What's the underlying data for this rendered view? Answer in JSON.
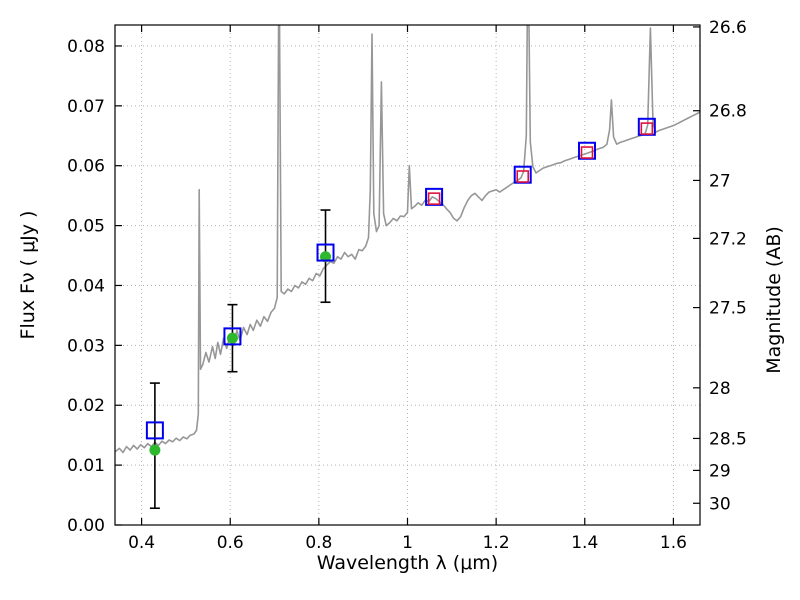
{
  "chart_data": {
    "type": "line",
    "title": "",
    "xlabel": "Wavelength  λ (μm)",
    "ylabel": "Flux  Fν  ( μJy )",
    "ylabel_right": "Magnitude (AB)",
    "xlim": [
      0.34,
      1.66
    ],
    "ylim": [
      0.0,
      0.0835
    ],
    "grid": true,
    "legend": "none",
    "x_ticks": [
      {
        "v": 0.4,
        "label": "0.4"
      },
      {
        "v": 0.6,
        "label": "0.6"
      },
      {
        "v": 0.8,
        "label": "0.8"
      },
      {
        "v": 1.0,
        "label": "1"
      },
      {
        "v": 1.2,
        "label": "1.2"
      },
      {
        "v": 1.4,
        "label": "1.4"
      },
      {
        "v": 1.6,
        "label": "1.6"
      }
    ],
    "y_ticks": [
      {
        "v": 0.0,
        "label": "0.00"
      },
      {
        "v": 0.01,
        "label": "0.01"
      },
      {
        "v": 0.02,
        "label": "0.02"
      },
      {
        "v": 0.03,
        "label": "0.03"
      },
      {
        "v": 0.04,
        "label": "0.04"
      },
      {
        "v": 0.05,
        "label": "0.05"
      },
      {
        "v": 0.06,
        "label": "0.06"
      },
      {
        "v": 0.07,
        "label": "0.07"
      },
      {
        "v": 0.08,
        "label": "0.08"
      }
    ],
    "mag_ticks": [
      {
        "mag": 26.6,
        "label": "26.6"
      },
      {
        "mag": 26.8,
        "label": "26.8"
      },
      {
        "mag": 27.0,
        "label": "27"
      },
      {
        "mag": 27.2,
        "label": "27.2"
      },
      {
        "mag": 27.5,
        "label": "27.5"
      },
      {
        "mag": 28.0,
        "label": "28"
      },
      {
        "mag": 28.5,
        "label": "28.5"
      },
      {
        "mag": 29.0,
        "label": "29"
      },
      {
        "mag": 30.0,
        "label": "30"
      }
    ],
    "mag_zeropoint_ujy": 23.9,
    "colors": {
      "spectrum": "#979797",
      "observed": "#2eb82e",
      "photometry_blue": "#0000ee",
      "photometry_red": "#dc143c",
      "errorbar": "#000000",
      "grid": "#b4b4b4",
      "frame": "#000000"
    },
    "series": [
      {
        "name": "model-spectrum",
        "type": "line",
        "color_key": "spectrum",
        "points": [
          [
            0.34,
            0.0122
          ],
          [
            0.35,
            0.0128
          ],
          [
            0.358,
            0.0121
          ],
          [
            0.366,
            0.0131
          ],
          [
            0.374,
            0.0125
          ],
          [
            0.382,
            0.0133
          ],
          [
            0.39,
            0.0127
          ],
          [
            0.398,
            0.0134
          ],
          [
            0.406,
            0.0129
          ],
          [
            0.414,
            0.0136
          ],
          [
            0.422,
            0.0131
          ],
          [
            0.43,
            0.0138
          ],
          [
            0.438,
            0.0133
          ],
          [
            0.446,
            0.014
          ],
          [
            0.454,
            0.0136
          ],
          [
            0.462,
            0.0142
          ],
          [
            0.47,
            0.0139
          ],
          [
            0.478,
            0.0145
          ],
          [
            0.486,
            0.0141
          ],
          [
            0.494,
            0.0147
          ],
          [
            0.502,
            0.0144
          ],
          [
            0.51,
            0.015
          ],
          [
            0.518,
            0.0152
          ],
          [
            0.524,
            0.0158
          ],
          [
            0.528,
            0.0185
          ],
          [
            0.53,
            0.056
          ],
          [
            0.533,
            0.026
          ],
          [
            0.538,
            0.0268
          ],
          [
            0.545,
            0.0288
          ],
          [
            0.552,
            0.0272
          ],
          [
            0.56,
            0.0298
          ],
          [
            0.566,
            0.0278
          ],
          [
            0.572,
            0.0305
          ],
          [
            0.578,
            0.0285
          ],
          [
            0.585,
            0.0312
          ],
          [
            0.592,
            0.0295
          ],
          [
            0.6,
            0.0318
          ],
          [
            0.608,
            0.03
          ],
          [
            0.615,
            0.0325
          ],
          [
            0.622,
            0.0308
          ],
          [
            0.63,
            0.033
          ],
          [
            0.638,
            0.0318
          ],
          [
            0.645,
            0.0335
          ],
          [
            0.652,
            0.0325
          ],
          [
            0.66,
            0.0342
          ],
          [
            0.668,
            0.0332
          ],
          [
            0.676,
            0.0348
          ],
          [
            0.684,
            0.034
          ],
          [
            0.692,
            0.0355
          ],
          [
            0.7,
            0.0362
          ],
          [
            0.706,
            0.038
          ],
          [
            0.71,
            0.098
          ],
          [
            0.715,
            0.039
          ],
          [
            0.722,
            0.0386
          ],
          [
            0.73,
            0.0394
          ],
          [
            0.738,
            0.039
          ],
          [
            0.746,
            0.04
          ],
          [
            0.754,
            0.0396
          ],
          [
            0.762,
            0.0406
          ],
          [
            0.77,
            0.0402
          ],
          [
            0.778,
            0.0412
          ],
          [
            0.786,
            0.0408
          ],
          [
            0.794,
            0.042
          ],
          [
            0.802,
            0.0416
          ],
          [
            0.81,
            0.0428
          ],
          [
            0.818,
            0.0434
          ],
          [
            0.826,
            0.044
          ],
          [
            0.834,
            0.0437
          ],
          [
            0.842,
            0.0448
          ],
          [
            0.85,
            0.0444
          ],
          [
            0.858,
            0.0455
          ],
          [
            0.866,
            0.0448
          ],
          [
            0.874,
            0.0452
          ],
          [
            0.882,
            0.0444
          ],
          [
            0.89,
            0.046
          ],
          [
            0.898,
            0.0458
          ],
          [
            0.906,
            0.0466
          ],
          [
            0.912,
            0.048
          ],
          [
            0.916,
            0.056
          ],
          [
            0.92,
            0.082
          ],
          [
            0.924,
            0.052
          ],
          [
            0.93,
            0.049
          ],
          [
            0.936,
            0.05
          ],
          [
            0.941,
            0.074
          ],
          [
            0.946,
            0.052
          ],
          [
            0.952,
            0.05
          ],
          [
            0.96,
            0.0505
          ],
          [
            0.968,
            0.0512
          ],
          [
            0.976,
            0.0508
          ],
          [
            0.984,
            0.0516
          ],
          [
            0.992,
            0.0515
          ],
          [
            1.0,
            0.0522
          ],
          [
            1.004,
            0.06
          ],
          [
            1.009,
            0.0528
          ],
          [
            1.016,
            0.0532
          ],
          [
            1.024,
            0.0538
          ],
          [
            1.032,
            0.0534
          ],
          [
            1.04,
            0.0542
          ],
          [
            1.048,
            0.054
          ],
          [
            1.056,
            0.0548
          ],
          [
            1.064,
            0.0545
          ],
          [
            1.072,
            0.054
          ],
          [
            1.08,
            0.0535
          ],
          [
            1.088,
            0.0528
          ],
          [
            1.096,
            0.0522
          ],
          [
            1.104,
            0.0512
          ],
          [
            1.112,
            0.0508
          ],
          [
            1.12,
            0.0515
          ],
          [
            1.128,
            0.053
          ],
          [
            1.136,
            0.0542
          ],
          [
            1.144,
            0.055
          ],
          [
            1.152,
            0.0554
          ],
          [
            1.16,
            0.0548
          ],
          [
            1.168,
            0.0542
          ],
          [
            1.176,
            0.055
          ],
          [
            1.184,
            0.0556
          ],
          [
            1.192,
            0.0558
          ],
          [
            1.2,
            0.056
          ],
          [
            1.208,
            0.0556
          ],
          [
            1.216,
            0.056
          ],
          [
            1.224,
            0.0564
          ],
          [
            1.232,
            0.0568
          ],
          [
            1.24,
            0.0572
          ],
          [
            1.248,
            0.0575
          ],
          [
            1.256,
            0.058
          ],
          [
            1.262,
            0.059
          ],
          [
            1.268,
            0.065
          ],
          [
            1.272,
            0.098
          ],
          [
            1.277,
            0.064
          ],
          [
            1.283,
            0.0598
          ],
          [
            1.29,
            0.0588
          ],
          [
            1.298,
            0.0592
          ],
          [
            1.306,
            0.0596
          ],
          [
            1.314,
            0.0598
          ],
          [
            1.322,
            0.06
          ],
          [
            1.33,
            0.0602
          ],
          [
            1.338,
            0.0604
          ],
          [
            1.346,
            0.0605
          ],
          [
            1.354,
            0.0608
          ],
          [
            1.362,
            0.061
          ],
          [
            1.37,
            0.0612
          ],
          [
            1.378,
            0.0614
          ],
          [
            1.386,
            0.0616
          ],
          [
            1.394,
            0.0618
          ],
          [
            1.402,
            0.062
          ],
          [
            1.41,
            0.0622
          ],
          [
            1.418,
            0.0624
          ],
          [
            1.426,
            0.0627
          ],
          [
            1.434,
            0.0629
          ],
          [
            1.442,
            0.0631
          ],
          [
            1.45,
            0.0636
          ],
          [
            1.456,
            0.066
          ],
          [
            1.46,
            0.071
          ],
          [
            1.465,
            0.0648
          ],
          [
            1.472,
            0.0636
          ],
          [
            1.48,
            0.0639
          ],
          [
            1.488,
            0.0641
          ],
          [
            1.496,
            0.0643
          ],
          [
            1.504,
            0.0645
          ],
          [
            1.512,
            0.0647
          ],
          [
            1.52,
            0.0649
          ],
          [
            1.528,
            0.0651
          ],
          [
            1.536,
            0.0653
          ],
          [
            1.542,
            0.0668
          ],
          [
            1.548,
            0.083
          ],
          [
            1.554,
            0.0672
          ],
          [
            1.56,
            0.0656
          ],
          [
            1.568,
            0.0659
          ],
          [
            1.576,
            0.0661
          ],
          [
            1.584,
            0.0663
          ],
          [
            1.592,
            0.0665
          ],
          [
            1.6,
            0.0667
          ],
          [
            1.608,
            0.067
          ],
          [
            1.616,
            0.0673
          ],
          [
            1.624,
            0.0676
          ],
          [
            1.632,
            0.0679
          ],
          [
            1.64,
            0.0682
          ],
          [
            1.648,
            0.0685
          ],
          [
            1.656,
            0.0688
          ],
          [
            1.66,
            0.069
          ]
        ]
      },
      {
        "name": "observed-photometry-circles",
        "type": "scatter",
        "marker": "circle-filled",
        "size": 11,
        "color_key": "observed",
        "points": [
          {
            "x": 0.43,
            "y": 0.0125,
            "err_lo": 0.0097,
            "err_hi": 0.0112
          },
          {
            "x": 0.605,
            "y": 0.0312,
            "err_lo": 0.0056,
            "err_hi": 0.0056
          },
          {
            "x": 0.815,
            "y": 0.0448,
            "err_lo": 0.0076,
            "err_hi": 0.0078
          }
        ]
      },
      {
        "name": "model-photometry-blue-squares",
        "type": "scatter",
        "marker": "square-open",
        "size": 16,
        "color_key": "photometry_blue",
        "points": [
          {
            "x": 0.43,
            "y": 0.0158
          },
          {
            "x": 0.605,
            "y": 0.0315
          },
          {
            "x": 0.815,
            "y": 0.0455
          },
          {
            "x": 1.06,
            "y": 0.0548
          },
          {
            "x": 1.26,
            "y": 0.0585
          },
          {
            "x": 1.405,
            "y": 0.0625
          },
          {
            "x": 1.54,
            "y": 0.0665
          }
        ]
      },
      {
        "name": "model-photometry-red-squares",
        "type": "scatter",
        "marker": "square-open",
        "size": 11,
        "color_key": "photometry_red",
        "points": [
          {
            "x": 1.06,
            "y": 0.0545
          },
          {
            "x": 1.26,
            "y": 0.0582
          },
          {
            "x": 1.405,
            "y": 0.0622
          },
          {
            "x": 1.54,
            "y": 0.0662
          }
        ]
      }
    ]
  }
}
